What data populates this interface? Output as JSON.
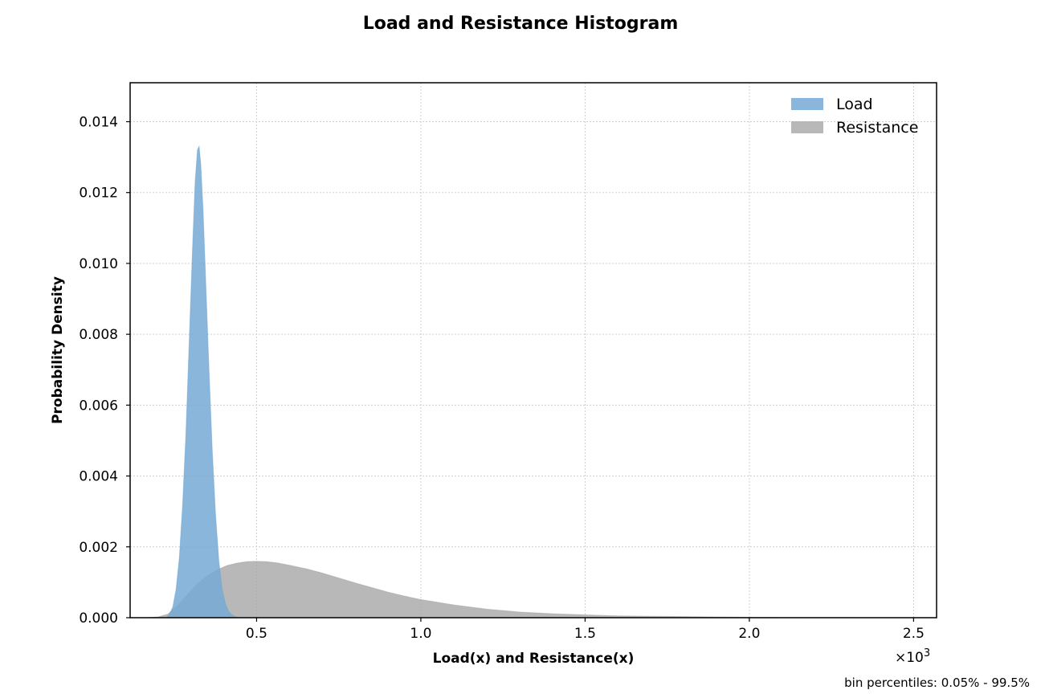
{
  "chart_data": {
    "type": "area",
    "title": "Load and Resistance Histogram",
    "xlabel": "Load(x) and Resistance(x)",
    "ylabel": "Probability Density",
    "x_multiplier_label": "×10",
    "x_multiplier_exponent": "3",
    "xlim": [
      115,
      2570
    ],
    "ylim": [
      0,
      0.0151
    ],
    "xticks": [
      {
        "value": 500,
        "label": "0.5"
      },
      {
        "value": 1000,
        "label": "1.0"
      },
      {
        "value": 1500,
        "label": "1.5"
      },
      {
        "value": 2000,
        "label": "2.0"
      },
      {
        "value": 2500,
        "label": "2.5"
      }
    ],
    "yticks": [
      {
        "value": 0.0,
        "label": "0.000"
      },
      {
        "value": 0.002,
        "label": "0.002"
      },
      {
        "value": 0.004,
        "label": "0.004"
      },
      {
        "value": 0.006,
        "label": "0.006"
      },
      {
        "value": 0.008,
        "label": "0.008"
      },
      {
        "value": 0.01,
        "label": "0.010"
      },
      {
        "value": 0.012,
        "label": "0.012"
      },
      {
        "value": 0.014,
        "label": "0.014"
      }
    ],
    "grid": true,
    "legend_position": "top-right",
    "note": "bin percentiles: 0.05% - 99.5%",
    "series": [
      {
        "name": "Resistance",
        "color": "#a6a6a6",
        "opacity": 0.8,
        "points": [
          [
            160,
            0
          ],
          [
            200,
            2e-05
          ],
          [
            230,
            0.0001
          ],
          [
            260,
            0.00035
          ],
          [
            290,
            0.00065
          ],
          [
            320,
            0.00095
          ],
          [
            350,
            0.00118
          ],
          [
            380,
            0.00135
          ],
          [
            410,
            0.00147
          ],
          [
            440,
            0.00154
          ],
          [
            470,
            0.00158
          ],
          [
            500,
            0.00159
          ],
          [
            530,
            0.00158
          ],
          [
            560,
            0.00155
          ],
          [
            600,
            0.00148
          ],
          [
            650,
            0.00138
          ],
          [
            700,
            0.00126
          ],
          [
            750,
            0.00112
          ],
          [
            800,
            0.00098
          ],
          [
            850,
            0.00085
          ],
          [
            900,
            0.00072
          ],
          [
            950,
            0.00061
          ],
          [
            1000,
            0.00051
          ],
          [
            1100,
            0.00036
          ],
          [
            1200,
            0.00024
          ],
          [
            1300,
            0.00016
          ],
          [
            1400,
            0.00011
          ],
          [
            1500,
            8e-05
          ],
          [
            1600,
            5e-05
          ],
          [
            1700,
            4e-05
          ],
          [
            1800,
            3e-05
          ],
          [
            1900,
            2e-05
          ],
          [
            2000,
            1.2e-05
          ],
          [
            2100,
            7e-06
          ],
          [
            2200,
            4e-06
          ],
          [
            2300,
            2e-06
          ],
          [
            2400,
            1e-06
          ],
          [
            2480,
            0
          ]
        ]
      },
      {
        "name": "Load",
        "color": "#74a9d4",
        "opacity": 0.85,
        "points": [
          [
            225,
            0
          ],
          [
            235,
            0.0001
          ],
          [
            245,
            0.0003
          ],
          [
            255,
            0.0008
          ],
          [
            265,
            0.0017
          ],
          [
            275,
            0.0032
          ],
          [
            285,
            0.0052
          ],
          [
            295,
            0.0078
          ],
          [
            305,
            0.0104
          ],
          [
            313,
            0.0123
          ],
          [
            320,
            0.0132
          ],
          [
            325,
            0.0133
          ],
          [
            330,
            0.0128
          ],
          [
            337,
            0.0115
          ],
          [
            345,
            0.0095
          ],
          [
            355,
            0.007
          ],
          [
            365,
            0.0047
          ],
          [
            375,
            0.0029
          ],
          [
            385,
            0.0016
          ],
          [
            395,
            0.0008
          ],
          [
            405,
            0.0004
          ],
          [
            415,
            0.00018
          ],
          [
            425,
            8e-05
          ],
          [
            435,
            3e-05
          ],
          [
            445,
            0
          ]
        ]
      }
    ]
  }
}
